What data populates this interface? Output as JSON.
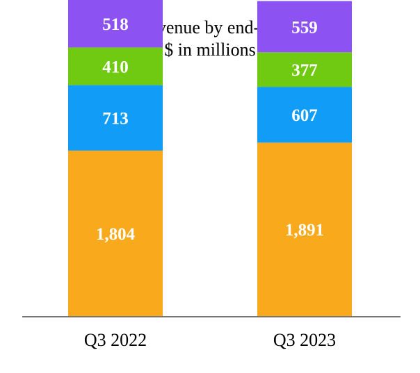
{
  "chart_data": {
    "type": "bar",
    "stacked": true,
    "title": "Q3 Revenue by end-market",
    "subtitle": "$ in millions",
    "xlabel": "",
    "ylabel": "",
    "categories": [
      "Q3 2022",
      "Q3 2023"
    ],
    "series": [
      {
        "values": [
          1804,
          1891
        ],
        "labels": [
          "1,804",
          "1,891"
        ],
        "color": "#F8A91C"
      },
      {
        "values": [
          713,
          607
        ],
        "labels": [
          "713",
          "607"
        ],
        "color": "#109CF7"
      },
      {
        "values": [
          410,
          377
        ],
        "labels": [
          "410",
          "377"
        ],
        "color": "#70CA11"
      },
      {
        "values": [
          518,
          559
        ],
        "labels": [
          "518",
          "559"
        ],
        "color": "#8C53F2"
      }
    ],
    "ylim": [
      0,
      3445
    ],
    "grid": false,
    "legend": "none",
    "axis_color": "#767676"
  }
}
